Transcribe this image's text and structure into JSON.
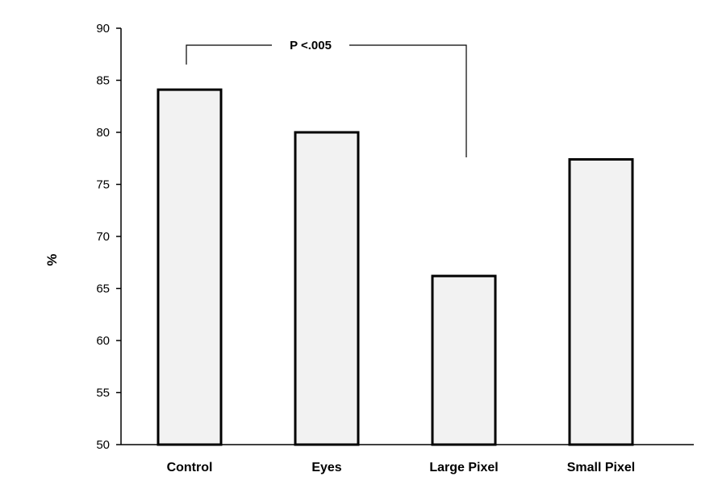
{
  "chart_data": {
    "type": "bar",
    "categories": [
      "Control",
      "Eyes",
      "Large Pixel",
      "Small Pixel"
    ],
    "values": [
      84.1,
      80.0,
      66.2,
      77.4
    ],
    "title": "",
    "xlabel": "",
    "ylabel": "%",
    "ylim": [
      50,
      90
    ],
    "yticks": [
      50,
      55,
      60,
      65,
      70,
      75,
      80,
      85,
      90
    ],
    "grid": false,
    "legend": "none",
    "bar_fill": "#f2f2f2",
    "bar_stroke": "#000000",
    "annotation": {
      "text": "P <.005",
      "from_category": "Control",
      "to_category": "Large Pixel"
    }
  }
}
